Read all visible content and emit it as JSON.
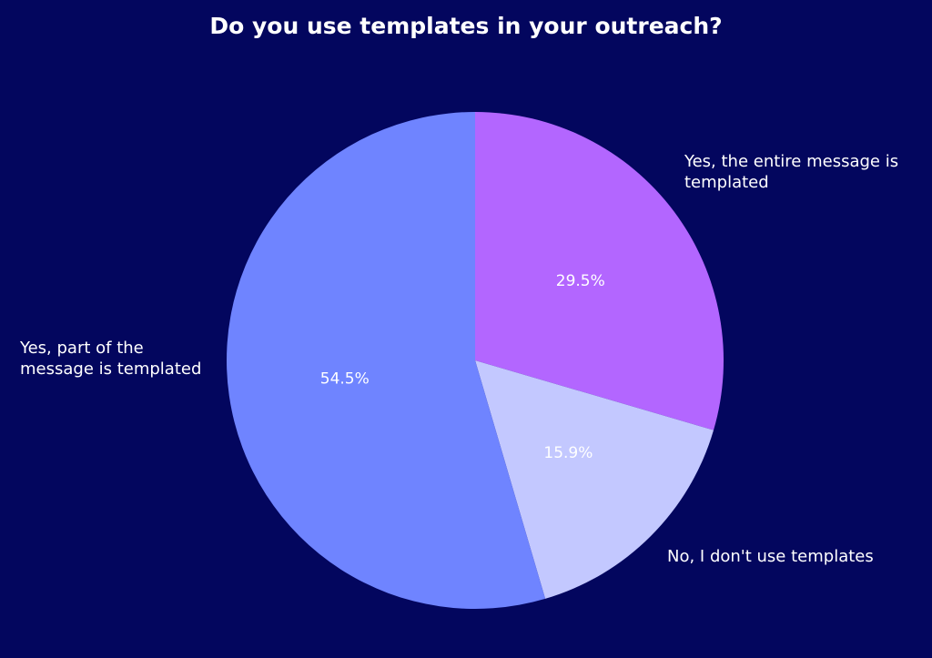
{
  "chart_data": {
    "type": "pie",
    "title": "Do you use templates in your outreach?",
    "categories": [
      "Yes, the entire message is templated",
      "No, I don't use templates",
      "Yes, part of the message is templated"
    ],
    "values": [
      29.5,
      15.9,
      54.5
    ],
    "value_labels": [
      "29.5%",
      "15.9%",
      "54.5%"
    ],
    "colors": [
      "#b366ff",
      "#c3c8ff",
      "#6f84ff"
    ]
  }
}
